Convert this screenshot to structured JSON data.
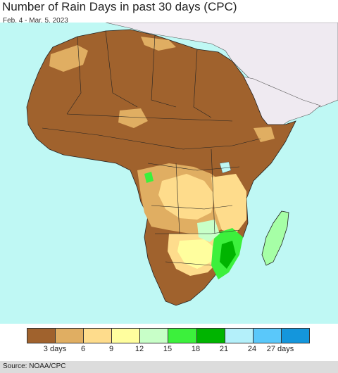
{
  "header": {
    "title": "Number of Rain Days in past 30 days (CPC)",
    "date_range": "Feb. 4 - Mar. 5, 2023"
  },
  "map": {
    "region": "Africa",
    "ocean_color": "#bff8f4",
    "land_other_color": "#efeaf1"
  },
  "legend": {
    "colors": [
      "#a0622d",
      "#e0ae62",
      "#fedc8c",
      "#fffe9e",
      "#c8ffc8",
      "#3cf03c",
      "#00b400",
      "#b4f0fa",
      "#5ac8fa",
      "#1496dc"
    ],
    "labels": [
      "3 days",
      "6",
      "9",
      "12",
      "15",
      "18",
      "21",
      "24",
      "27 days"
    ]
  },
  "footer": {
    "source": "Source: NOAA/CPC"
  }
}
